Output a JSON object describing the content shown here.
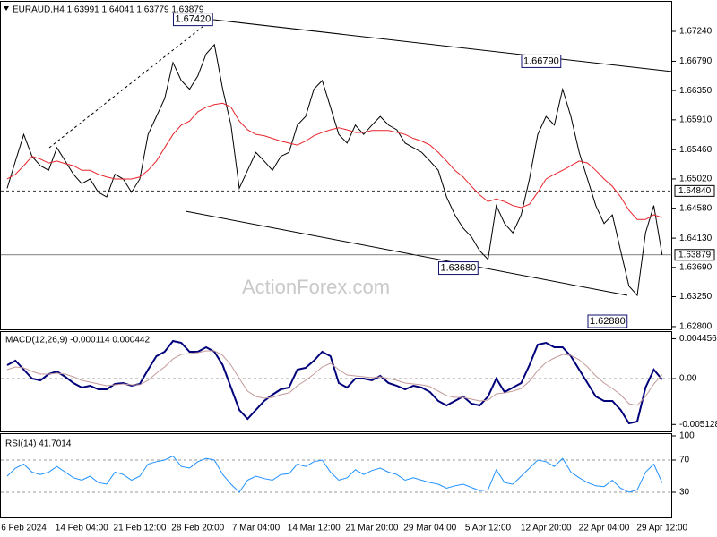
{
  "chart_data": [
    {
      "type": "line",
      "title": "EURAUD,H4 1.63991 1.64041 1.63779 1.63879",
      "categories": [
        null,
        null,
        "6 Feb 2024",
        null,
        null,
        null,
        null,
        null,
        null,
        "14 Feb 04:00",
        null,
        null,
        null,
        null,
        null,
        null,
        "21 Feb 12:00",
        null,
        null,
        null,
        null,
        null,
        null,
        "28 Feb 20:00",
        null,
        null,
        null,
        null,
        null,
        null,
        "7 Mar 04:00",
        null,
        null,
        null,
        null,
        null,
        null,
        "14 Mar 12:00",
        null,
        null,
        null,
        null,
        null,
        null,
        "21 Mar 20:00",
        null,
        null,
        null,
        null,
        null,
        null,
        "29 Mar 04:00",
        null,
        null,
        null,
        null,
        null,
        null,
        "5 Apr 12:00",
        null,
        null,
        null,
        null,
        null,
        null,
        "12 Apr 20:00",
        null,
        null,
        null,
        null,
        null,
        null,
        "22 Apr 04:00",
        null,
        null,
        null,
        null,
        null,
        null,
        "29 Apr 12:00"
      ],
      "series": [
        {
          "color": "#000000",
          "values": [
            1.6488,
            1.6529,
            1.6569,
            1.6536,
            1.6522,
            1.6515,
            1.6549,
            1.6529,
            1.6509,
            1.6495,
            1.6502,
            1.6482,
            1.6475,
            1.6509,
            1.6502,
            1.6482,
            1.6502,
            1.6569,
            1.6596,
            1.6623,
            1.6677,
            1.665,
            1.6637,
            1.6657,
            1.669,
            1.6704,
            1.6637,
            1.6583,
            1.6488,
            1.6515,
            1.6542,
            1.6529,
            1.6515,
            1.6536,
            1.6542,
            1.6583,
            1.6596,
            1.6637,
            1.665,
            1.661,
            1.6569,
            1.6556,
            1.6583,
            1.6569,
            1.6583,
            1.6596,
            1.6583,
            1.6576,
            1.6556,
            1.6549,
            1.6542,
            1.6529,
            1.6515,
            1.6475,
            1.6448,
            1.6428,
            1.6415,
            1.6394,
            1.6381,
            1.6462,
            1.6435,
            1.6421,
            1.6448,
            1.6502,
            1.6569,
            1.6596,
            1.6583,
            1.6637,
            1.6596,
            1.6542,
            1.6502,
            1.6462,
            1.6435,
            1.6448,
            1.6394,
            1.6341,
            1.6327,
            1.6421,
            1.6462,
            1.63879
          ]
        },
        {
          "color": "#e8232a",
          "values": [
            1.6502,
            1.6509,
            1.6522,
            1.6536,
            1.6532,
            1.6526,
            1.6529,
            1.6525,
            1.6522,
            1.6515,
            1.6515,
            1.6509,
            1.6505,
            1.6502,
            1.6502,
            1.6502,
            1.6505,
            1.6515,
            1.6529,
            1.6549,
            1.6569,
            1.6583,
            1.6589,
            1.6603,
            1.661,
            1.6614,
            1.6616,
            1.661,
            1.6589,
            1.6576,
            1.6569,
            1.6567,
            1.6563,
            1.6559,
            1.6556,
            1.6553,
            1.6559,
            1.6567,
            1.6572,
            1.6576,
            1.6579,
            1.6576,
            1.6572,
            1.6572,
            1.6575,
            1.6575,
            1.6575,
            1.6572,
            1.6569,
            1.6563,
            1.6559,
            1.6553,
            1.6542,
            1.6529,
            1.6515,
            1.6505,
            1.6491,
            1.6478,
            1.6468,
            1.6472,
            1.6468,
            1.6462,
            1.6459,
            1.6464,
            1.6482,
            1.6502,
            1.6509,
            1.6515,
            1.6522,
            1.6529,
            1.6526,
            1.6515,
            1.6502,
            1.6491,
            1.6475,
            1.6455,
            1.6441,
            1.6441,
            1.6448,
            1.6444
          ]
        }
      ],
      "ylim": [
        1.62759,
        1.67684
      ],
      "yticks": [
        {
          "value": 1.6724,
          "label": "1.67240"
        },
        {
          "value": 1.6679,
          "label": "1.66790"
        },
        {
          "value": 1.6635,
          "label": "1.66350"
        },
        {
          "value": 1.6591,
          "label": "1.65910"
        },
        {
          "value": 1.6546,
          "label": "1.65460"
        },
        {
          "value": 1.6502,
          "label": "1.65020"
        },
        {
          "value": 1.6458,
          "label": "1.64580"
        },
        {
          "value": 1.6413,
          "label": "1.64130"
        },
        {
          "value": 1.6369,
          "label": "1.63690"
        },
        {
          "value": 1.6325,
          "label": "1.63250"
        },
        {
          "value": 1.628,
          "label": "1.62800"
        }
      ],
      "annotations": [
        {
          "label": "1.67420",
          "value": 1.6742,
          "x": 25
        },
        {
          "label": "1.66790",
          "value": 1.6679,
          "x": 67
        },
        {
          "label": "1.63680",
          "value": 1.6368,
          "x": 57
        },
        {
          "label": "1.62880",
          "value": 1.6288,
          "x": 75
        }
      ],
      "hlines": [
        {
          "value": 1.6484,
          "label": "1.64840",
          "style": "dashed"
        },
        {
          "value": 1.63879,
          "label": "1.63879",
          "style": "solid"
        }
      ],
      "watermark": "ActionForex.com"
    },
    {
      "type": "line",
      "title": "MACD(12,26,9) -0.000114 0.000442",
      "series": [
        {
          "color": "#00007a",
          "values": [
            0.0015,
            0.002,
            0.001,
            0,
            -0.0002,
            0.0005,
            0.0008,
            0.0002,
            -0.0005,
            -0.001,
            -0.0008,
            -0.0012,
            -0.0012,
            -0.0006,
            -0.0005,
            -0.0008,
            -0.0006,
            0.001,
            0.0025,
            0.003,
            0.0042,
            0.004,
            0.003,
            0.003,
            0.0035,
            0.003,
            0.0015,
            -0.001,
            -0.0035,
            -0.0045,
            -0.0035,
            -0.0025,
            -0.0018,
            -0.0012,
            -0.001,
            0.001,
            0.0012,
            0.002,
            0.003,
            0.0025,
            -0.0005,
            -0.001,
            0,
            0,
            -0.0002,
            0.0003,
            -0.0005,
            -0.0008,
            -0.0012,
            -0.0008,
            -0.001,
            -0.0015,
            -0.0025,
            -0.003,
            -0.0025,
            -0.002,
            -0.0028,
            -0.003,
            -0.002,
            0,
            -0.0015,
            -0.001,
            -0.0005,
            0.0015,
            0.0038,
            0.004,
            0.0035,
            0.0035,
            0.0025,
            0.001,
            -0.0005,
            -0.002,
            -0.0025,
            -0.0025,
            -0.0035,
            -0.005,
            -0.0048,
            -0.001,
            0.001,
            -0.000114
          ]
        },
        {
          "color": "#c49a9a",
          "values": [
            0.001,
            0.0013,
            0.0012,
            0.0008,
            0.0005,
            0.0005,
            0.0006,
            0.0005,
            0.0002,
            -0.0002,
            -0.0004,
            -0.0006,
            -0.0008,
            -0.0007,
            -0.0006,
            -0.0007,
            -0.0007,
            -0.0002,
            0.0006,
            0.0013,
            0.0022,
            0.0027,
            0.0028,
            0.0029,
            0.0031,
            0.0031,
            0.0026,
            0.0015,
            0,
            -0.0014,
            -0.002,
            -0.0022,
            -0.0021,
            -0.0018,
            -0.0016,
            -0.0008,
            -0.0002,
            0.0005,
            0.0013,
            0.0017,
            0.001,
            0.0004,
            0.0003,
            0.0002,
            0.0001,
            0.0002,
            0,
            -0.0002,
            -0.0005,
            -0.0006,
            -0.0007,
            -0.0009,
            -0.0014,
            -0.0019,
            -0.0021,
            -0.0021,
            -0.0023,
            -0.0025,
            -0.0024,
            -0.0017,
            -0.0016,
            -0.0014,
            -0.0011,
            -0.0003,
            0.0009,
            0.0018,
            0.0023,
            0.0027,
            0.0026,
            0.0021,
            0.0013,
            0.0003,
            -0.0005,
            -0.0011,
            -0.0018,
            -0.0028,
            -0.003,
            -0.002,
            -0.0006,
            0.000442
          ]
        }
      ],
      "ylim": [
        -0.0059,
        0.0052
      ],
      "yticks": [
        0.004456,
        {
          "value": 0,
          "label": "0.00"
        },
        -0.005128
      ],
      "zero_line": true
    },
    {
      "type": "line",
      "title": "RSI(14) 41.7014",
      "series": [
        {
          "color": "#1e90ff",
          "values": [
            50,
            60,
            65,
            55,
            52,
            55,
            62,
            55,
            48,
            45,
            50,
            42,
            40,
            55,
            52,
            45,
            50,
            65,
            68,
            70,
            75,
            62,
            60,
            68,
            72,
            70,
            52,
            40,
            30,
            45,
            50,
            47,
            45,
            52,
            53,
            65,
            62,
            68,
            70,
            55,
            45,
            48,
            58,
            52,
            57,
            60,
            55,
            52,
            45,
            48,
            45,
            42,
            40,
            35,
            38,
            40,
            36,
            32,
            33,
            58,
            42,
            40,
            50,
            60,
            70,
            68,
            62,
            72,
            55,
            48,
            42,
            38,
            37,
            45,
            35,
            30,
            33,
            55,
            65,
            41.7014
          ]
        }
      ],
      "ylim": [
        0,
        100
      ],
      "yticks": [
        100,
        70,
        30
      ],
      "level_lines": true
    }
  ]
}
